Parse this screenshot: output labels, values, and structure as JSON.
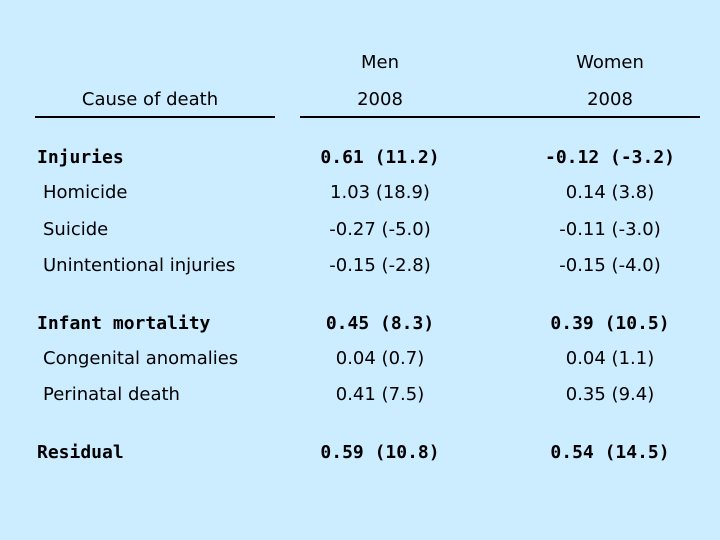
{
  "header": {
    "cause_label": "Cause of death",
    "col1_name": "Men",
    "col2_name": "Women",
    "col1_year": "2008",
    "col2_year": "2008"
  },
  "rows": [
    {
      "label": "Injuries",
      "men": "0.61 (11.2)",
      "women": "-0.12 (-3.2)",
      "level": "category"
    },
    {
      "label": "Homicide",
      "men": "1.03 (18.9)",
      "women": "0.14 (3.8)",
      "level": "sub"
    },
    {
      "label": "Suicide",
      "men": "-0.27 (-5.0)",
      "women": "-0.11 (-3.0)",
      "level": "sub"
    },
    {
      "label": "Unintentional injuries",
      "men": "-0.15 (-2.8)",
      "women": "-0.15 (-4.0)",
      "level": "sub"
    },
    {
      "label": "Infant mortality",
      "men": "0.45 (8.3)",
      "women": "0.39 (10.5)",
      "level": "category"
    },
    {
      "label": "Congenital anomalies",
      "men": "0.04 (0.7)",
      "women": "0.04 (1.1)",
      "level": "sub"
    },
    {
      "label": "Perinatal death",
      "men": "0.41 (7.5)",
      "women": "0.35 (9.4)",
      "level": "sub"
    },
    {
      "label": "Residual",
      "men": "0.59 (10.8)",
      "women": "0.54 (14.5)",
      "level": "category"
    }
  ],
  "colors": {
    "background": "#ccecff",
    "text": "#000000"
  }
}
